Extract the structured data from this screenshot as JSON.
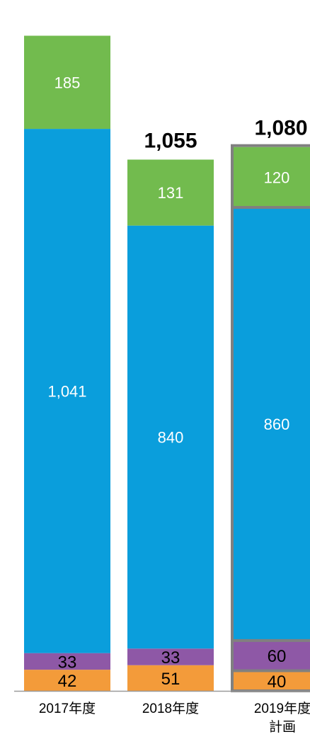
{
  "chart_data": {
    "type": "bar",
    "stacked": true,
    "categories": [
      "2017年度",
      "2018年度",
      "2019年度\n計画"
    ],
    "series": [
      {
        "values": [
          42,
          51,
          40
        ],
        "color": "#F39B3A"
      },
      {
        "values": [
          33,
          33,
          60
        ],
        "color": "#8E58A6"
      },
      {
        "values": [
          1041,
          840,
          860
        ],
        "color": "#0A9EDC"
      },
      {
        "values": [
          185,
          131,
          120
        ],
        "color": "#72BB4E"
      }
    ],
    "totals": [
      null,
      "1,055",
      "1,080"
    ],
    "highlight_category_index": 2,
    "highlight_color": "#808080",
    "data_label_color_dark": "#000000",
    "data_label_color_light": "#ffffff",
    "data_labels": [
      [
        "42",
        "51",
        "40"
      ],
      [
        "33",
        "33",
        "60"
      ],
      [
        "1,041",
        "840",
        "860"
      ],
      [
        "185",
        "131",
        "120"
      ]
    ]
  }
}
